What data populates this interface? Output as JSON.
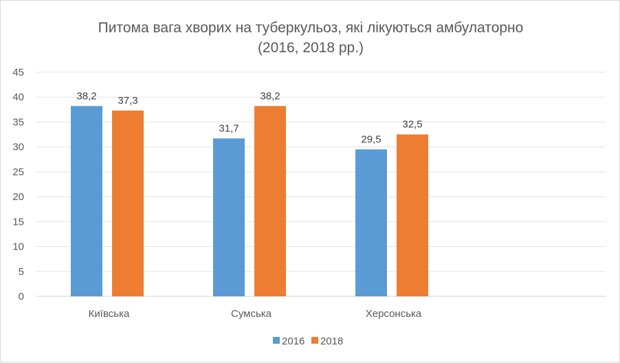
{
  "chart_data": {
    "type": "bar",
    "title": "Питома вага хворих  на туберкульоз, які лікуються амбулаторно",
    "subtitle": "(2016, 2018 рр.)",
    "categories": [
      "Київська",
      "Сумська",
      "Херсонська"
    ],
    "series": [
      {
        "name": "2016",
        "values": [
          38.2,
          31.7,
          29.5
        ],
        "labels": [
          "38,2",
          "31,7",
          "29,5"
        ],
        "color": "#5B9BD5"
      },
      {
        "name": "2018",
        "values": [
          37.3,
          38.2,
          32.5
        ],
        "labels": [
          "37,3",
          "38,2",
          "32,5"
        ],
        "color": "#ED7D31"
      }
    ],
    "xlabel": "",
    "ylabel": "",
    "ylim": [
      0,
      45
    ],
    "yticks": [
      0,
      5,
      10,
      15,
      20,
      25,
      30,
      35,
      40,
      45
    ],
    "grid": true,
    "legend": "bottom"
  }
}
